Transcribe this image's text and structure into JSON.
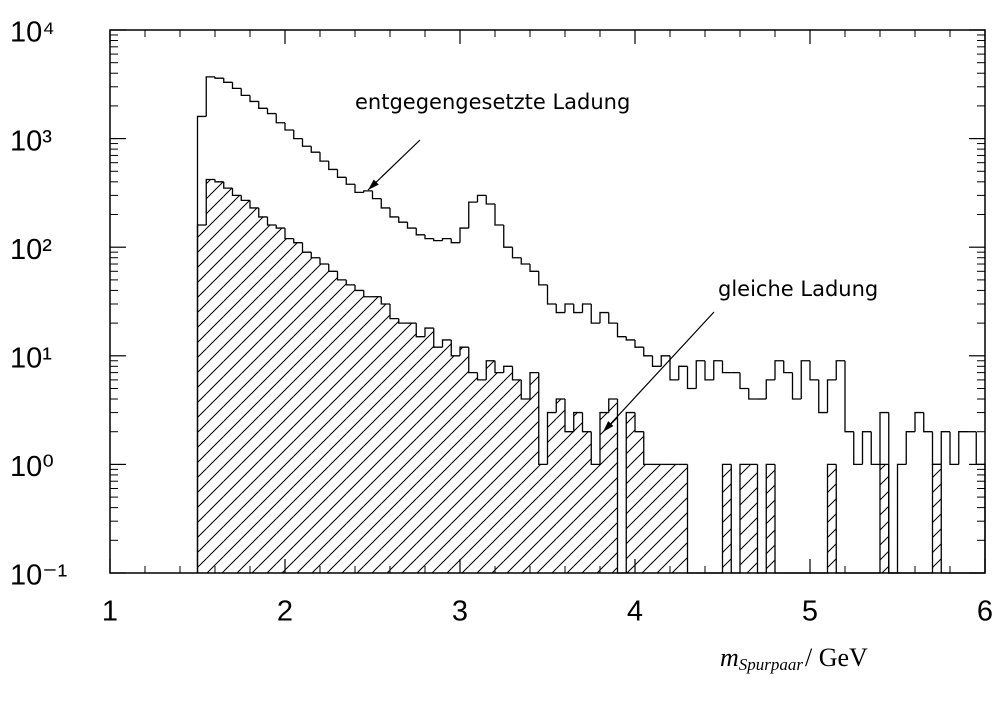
{
  "chart_data": {
    "type": "histogram",
    "xlabel": "m",
    "xlabel_subscript": "Spurpaar",
    "xlabel_unit": "/ GeV",
    "bins": [
      1.5,
      1.55,
      1.6,
      1.65,
      1.7,
      1.75,
      1.8,
      1.85,
      1.9,
      1.95,
      2.0,
      2.05,
      2.1,
      2.15,
      2.2,
      2.25,
      2.3,
      2.35,
      2.4,
      2.45,
      2.5,
      2.55,
      2.6,
      2.65,
      2.7,
      2.75,
      2.8,
      2.85,
      2.9,
      2.95,
      3.0,
      3.05,
      3.1,
      3.15,
      3.2,
      3.25,
      3.3,
      3.35,
      3.4,
      3.45,
      3.5,
      3.55,
      3.6,
      3.65,
      3.7,
      3.75,
      3.8,
      3.85,
      3.9,
      3.95,
      4.0,
      4.05,
      4.1,
      4.15,
      4.2,
      4.25,
      4.3,
      4.35,
      4.4,
      4.45,
      4.5,
      4.55,
      4.6,
      4.65,
      4.7,
      4.75,
      4.8,
      4.85,
      4.9,
      4.95,
      5.0,
      5.05,
      5.1,
      5.15,
      5.2,
      5.25,
      5.3,
      5.35,
      5.4,
      5.45,
      5.5,
      5.55,
      5.6,
      5.65,
      5.7,
      5.75,
      5.8,
      5.85,
      5.9,
      5.95,
      6.0
    ],
    "series": [
      {
        "name": "entgegengesetzte Ladung",
        "color": "#000000",
        "hatch": false,
        "values": [
          1600,
          3700,
          3600,
          3300,
          2900,
          2500,
          2200,
          1900,
          1700,
          1400,
          1200,
          1000,
          850,
          750,
          620,
          520,
          440,
          380,
          320,
          330,
          280,
          230,
          190,
          170,
          150,
          130,
          120,
          115,
          120,
          110,
          150,
          260,
          300,
          250,
          160,
          100,
          80,
          70,
          60,
          45,
          30,
          25,
          30,
          25,
          30,
          20,
          25,
          20,
          15,
          14,
          12,
          10,
          8,
          10,
          6,
          8,
          5,
          9,
          6,
          9,
          7,
          7,
          5,
          4,
          4,
          6,
          9,
          7,
          4,
          9,
          6,
          3,
          6,
          9,
          2,
          1,
          2,
          1,
          3,
          0,
          1,
          2,
          3,
          2,
          1,
          2,
          1,
          2,
          2,
          1
        ]
      },
      {
        "name": "gleiche Ladung",
        "color": "#000000",
        "hatch": true,
        "values": [
          160,
          420,
          400,
          350,
          300,
          270,
          230,
          190,
          160,
          150,
          120,
          110,
          90,
          80,
          70,
          60,
          50,
          45,
          40,
          35,
          35,
          30,
          22,
          20,
          20,
          15,
          18,
          12,
          14,
          10,
          12,
          7,
          6,
          9,
          7,
          8,
          6,
          4,
          7,
          1,
          3,
          4,
          2,
          3,
          2,
          1,
          3,
          4,
          0,
          3,
          2,
          1,
          1,
          1,
          1,
          1,
          0,
          0,
          0,
          0,
          1,
          0,
          1,
          1,
          0,
          1,
          0,
          0,
          0,
          0,
          0,
          0,
          1,
          0,
          0,
          0,
          0,
          0,
          1,
          0,
          0,
          0,
          0,
          0,
          1,
          0,
          0,
          0,
          0,
          0
        ]
      }
    ],
    "xlim": [
      1,
      6
    ],
    "xticks": [
      1,
      2,
      3,
      4,
      5,
      6
    ],
    "ylim": [
      0.1,
      10000
    ],
    "log_y": true,
    "yticks": [
      {
        "value": 0.1,
        "label": "10⁻¹"
      },
      {
        "value": 1,
        "label": "10⁰"
      },
      {
        "value": 10,
        "label": "10¹"
      },
      {
        "value": 100,
        "label": "10²"
      },
      {
        "value": 1000,
        "label": "10³"
      },
      {
        "value": 10000,
        "label": "10⁴"
      }
    ]
  }
}
